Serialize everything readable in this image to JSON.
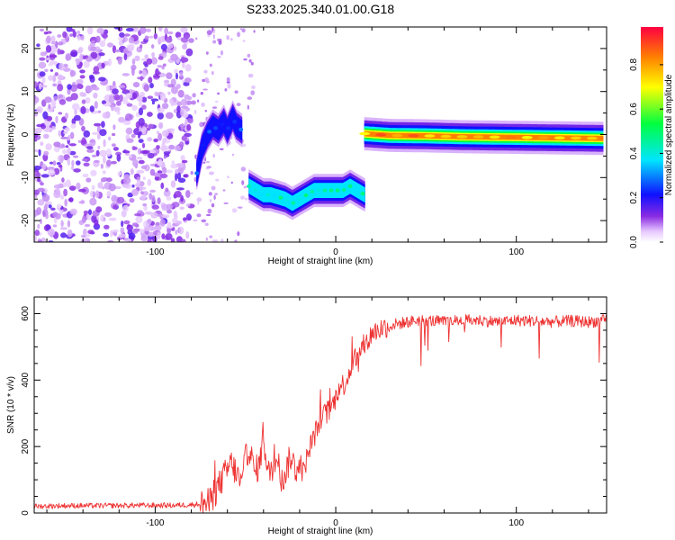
{
  "title": "S233.2025.340.01.00.G18",
  "chart_data": [
    {
      "type": "heatmap",
      "xlabel": "Height of straight line (km)",
      "ylabel": "Frequency (Hz)",
      "xlim": [
        -167,
        150
      ],
      "ylim": [
        -25,
        25
      ],
      "x_ticks": [
        -100,
        0,
        100
      ],
      "y_ticks": [
        -20,
        -10,
        0,
        10,
        20
      ],
      "colorbar": {
        "label": "Normalized spectral amplitude",
        "range": [
          0,
          0.97
        ],
        "ticks": [
          0.0,
          0.2,
          0.4,
          0.6,
          0.8
        ],
        "tick_labels": [
          "0.0",
          "0.2",
          "0.4",
          "0.6",
          "0.8"
        ]
      },
      "noise_region_x": [
        -167,
        -80
      ],
      "ridges": [
        {
          "x": [
            -77,
            -74,
            -71,
            -68,
            -65,
            -62,
            -60,
            -57,
            -55,
            -52
          ],
          "freq": [
            -9,
            -3,
            0,
            2,
            1,
            3,
            1,
            4,
            2,
            1
          ],
          "amplitude": 0.3
        },
        {
          "x": [
            -48,
            -44,
            -40,
            -36,
            -32,
            -28,
            -24,
            -20,
            -16,
            -12,
            -8,
            -4,
            0,
            4,
            8,
            12,
            16
          ],
          "freq": [
            -12,
            -13,
            -14,
            -14,
            -14.5,
            -15,
            -16,
            -15,
            -14,
            -13,
            -13,
            -13,
            -13,
            -13,
            -12,
            -13,
            -14
          ],
          "amplitude": 0.5
        },
        {
          "x": [
            16,
            30,
            50,
            70,
            90,
            110,
            130,
            148
          ],
          "freq": [
            0.2,
            -0.2,
            -0.3,
            -0.5,
            -0.6,
            -0.7,
            -0.8,
            -0.9
          ],
          "amplitude": 0.92
        }
      ]
    },
    {
      "type": "line",
      "xlabel": "Height of straight line (km)",
      "ylabel": "SNR (10 * v/v)",
      "xlim": [
        -167,
        150
      ],
      "ylim": [
        0,
        650
      ],
      "x_ticks": [
        -100,
        0,
        100
      ],
      "y_ticks": [
        0,
        200,
        400,
        600
      ],
      "series": [
        {
          "x": [
            -167,
            -150,
            -130,
            -110,
            -90,
            -80,
            -70,
            -66,
            -62,
            -58,
            -55,
            -52,
            -50,
            -48,
            -45,
            -42,
            -40,
            -38,
            -35,
            -32,
            -30,
            -28,
            -25,
            -22,
            -20,
            -18,
            -15,
            -12,
            -10,
            -8,
            -5,
            -2,
            0,
            2,
            5,
            8,
            10,
            12,
            15,
            18,
            20,
            25,
            30,
            35,
            40,
            45,
            50,
            60,
            70,
            80,
            90,
            100,
            110,
            120,
            130,
            140,
            150
          ],
          "y": [
            20,
            22,
            22,
            23,
            23,
            25,
            30,
            70,
            110,
            150,
            120,
            80,
            160,
            200,
            120,
            150,
            250,
            110,
            140,
            180,
            90,
            120,
            170,
            130,
            150,
            120,
            190,
            230,
            260,
            290,
            300,
            320,
            350,
            380,
            390,
            430,
            470,
            460,
            500,
            520,
            540,
            555,
            565,
            570,
            575,
            580,
            580,
            575,
            580,
            580,
            575,
            580,
            578,
            575,
            578,
            575,
            580
          ]
        }
      ],
      "color": "#ee3131"
    }
  ]
}
